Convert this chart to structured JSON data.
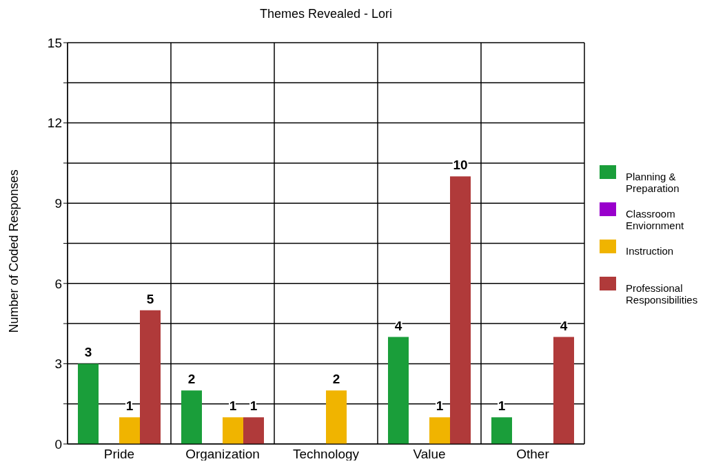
{
  "chart_data": {
    "type": "bar",
    "title": "Themes Revealed - Lori",
    "ylabel": "Number of Coded Responses",
    "categories": [
      "Pride",
      "Organization",
      "Technology",
      "Value",
      "Other"
    ],
    "series": [
      {
        "name": "Planning & Preparation",
        "color": "#1a9e3a",
        "values": [
          3,
          2,
          0,
          4,
          1
        ],
        "value_labels": [
          "3",
          "2",
          null,
          "4",
          "1"
        ]
      },
      {
        "name": "Classroom Enviornment",
        "color": "#9900cc",
        "values": [
          0,
          0,
          0,
          0,
          0
        ],
        "value_labels": [
          null,
          null,
          null,
          null,
          null
        ]
      },
      {
        "name": "Instruction",
        "color": "#f0b400",
        "values": [
          1,
          1,
          2,
          1,
          0
        ],
        "value_labels": [
          "1",
          "1",
          "2",
          "1",
          null
        ]
      },
      {
        "name": "Professional Responsibilities",
        "color": "#b03a3a",
        "values": [
          5,
          1,
          0,
          10,
          4
        ],
        "value_labels": [
          "5",
          "1",
          null,
          "10",
          "4"
        ]
      }
    ],
    "ylim": [
      0,
      15
    ],
    "yticks": [
      0,
      {
        "value": 1.5,
        "label": null
      },
      3,
      {
        "value": 4.5,
        "label": null
      },
      6,
      {
        "value": 7.5,
        "label": null
      },
      9,
      {
        "value": 10.5,
        "label": null
      },
      12,
      {
        "value": 13.5,
        "label": null
      },
      15
    ],
    "grid": true,
    "legend": "right"
  }
}
